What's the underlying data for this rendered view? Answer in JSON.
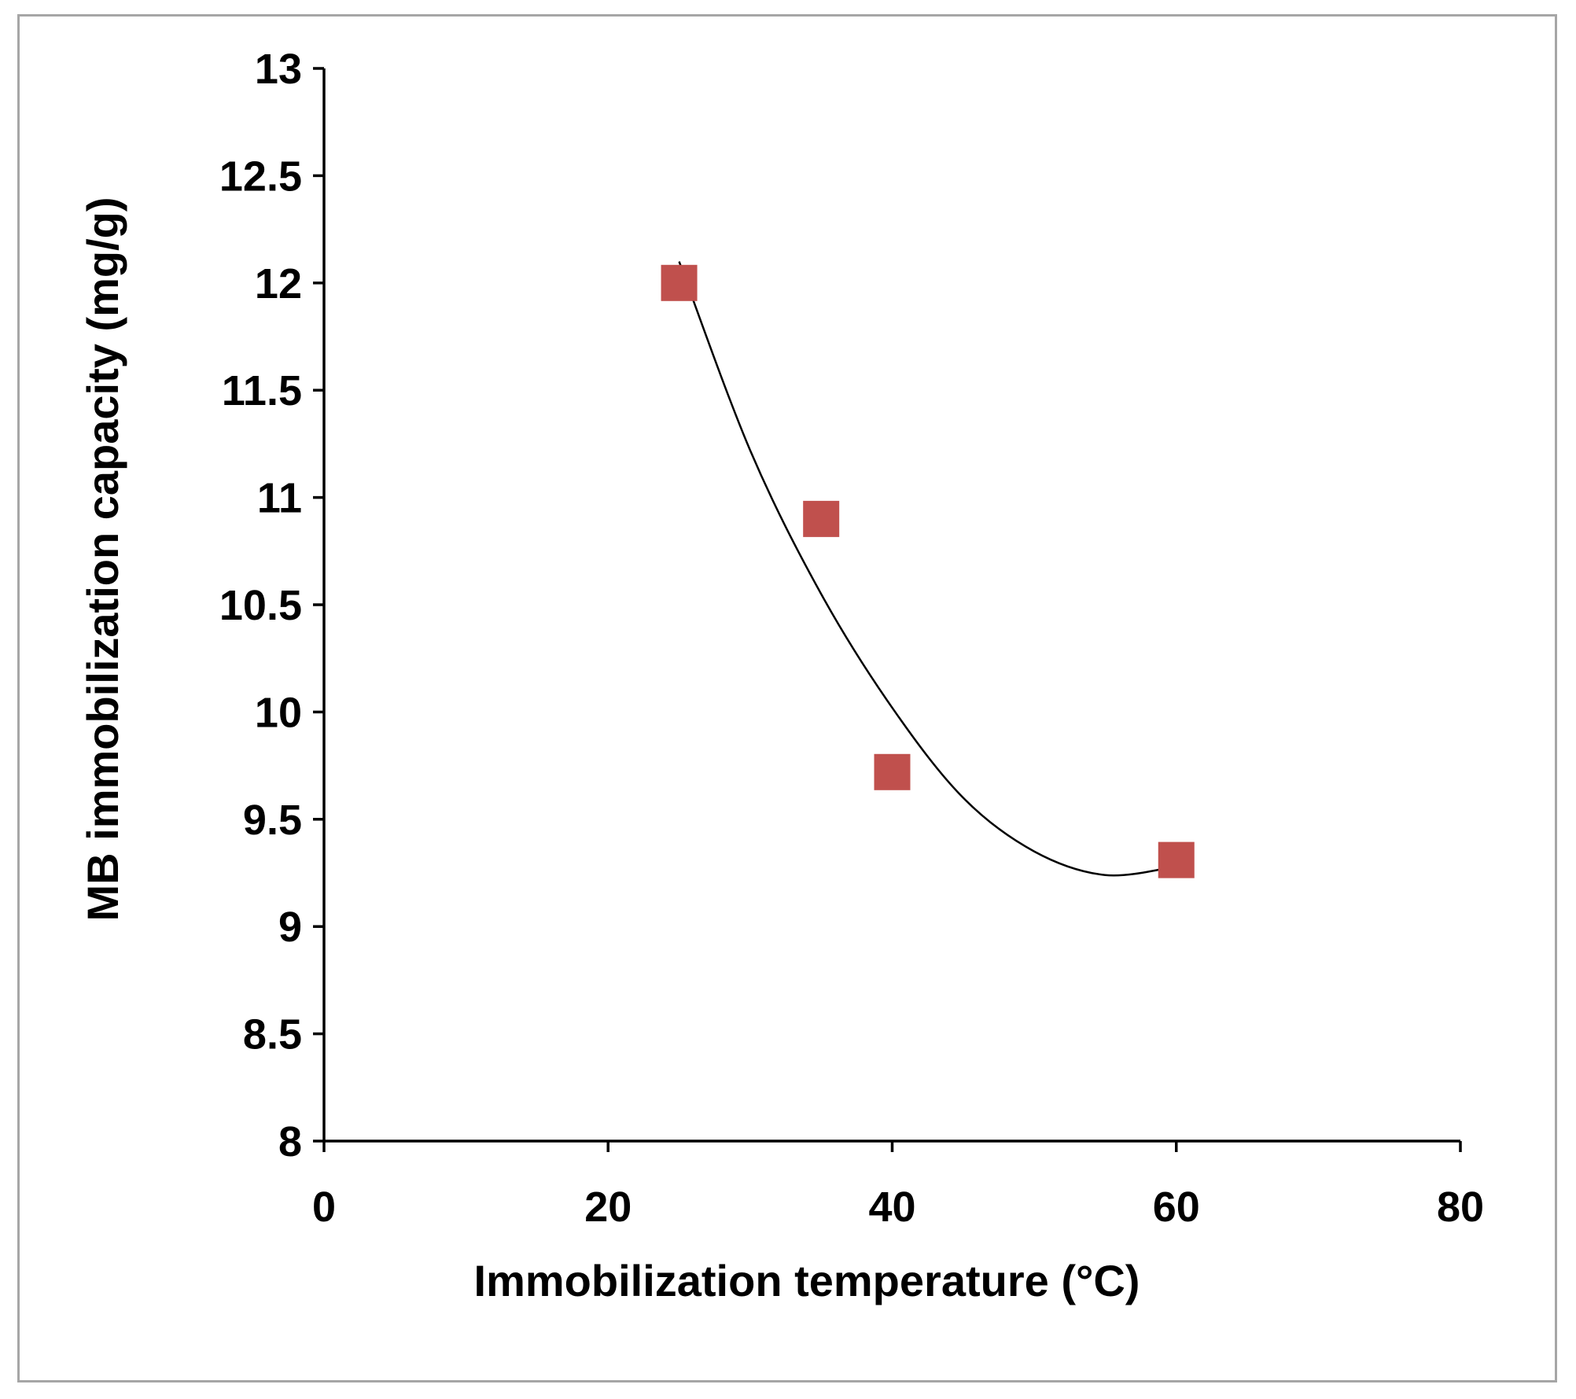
{
  "chart_data": {
    "type": "scatter",
    "title": "",
    "xlabel": "Immobilization temperature (°C)",
    "ylabel": "MB immobilization capacity (mg/g)",
    "xlim": [
      0,
      80
    ],
    "ylim": [
      8,
      13
    ],
    "xticks": [
      0,
      20,
      40,
      60,
      80
    ],
    "yticks": [
      8,
      8.5,
      9,
      9.5,
      10,
      10.5,
      11,
      11.5,
      12,
      12.5,
      13
    ],
    "xtick_labels": [
      "0",
      "20",
      "40",
      "60",
      "80"
    ],
    "ytick_labels": [
      "8",
      "8.5",
      "9",
      "9.5",
      "10",
      "10.5",
      "11",
      "11.5",
      "12",
      "12.5",
      "13"
    ],
    "grid": false,
    "legend": "none",
    "series": [
      {
        "name": "MB immobilization capacity",
        "marker": "square",
        "color": "#c0504d",
        "x": [
          25,
          35,
          40,
          60
        ],
        "y": [
          12.0,
          10.9,
          9.72,
          9.31
        ]
      }
    ],
    "trendline": {
      "type": "polynomial (order 2)",
      "color": "#000000",
      "x_range": [
        25,
        60
      ],
      "x": [
        25,
        30,
        35,
        40,
        45,
        50,
        55,
        60
      ],
      "y": [
        12.1,
        11.22,
        10.55,
        10.02,
        9.6,
        9.35,
        9.24,
        9.28
      ]
    }
  }
}
